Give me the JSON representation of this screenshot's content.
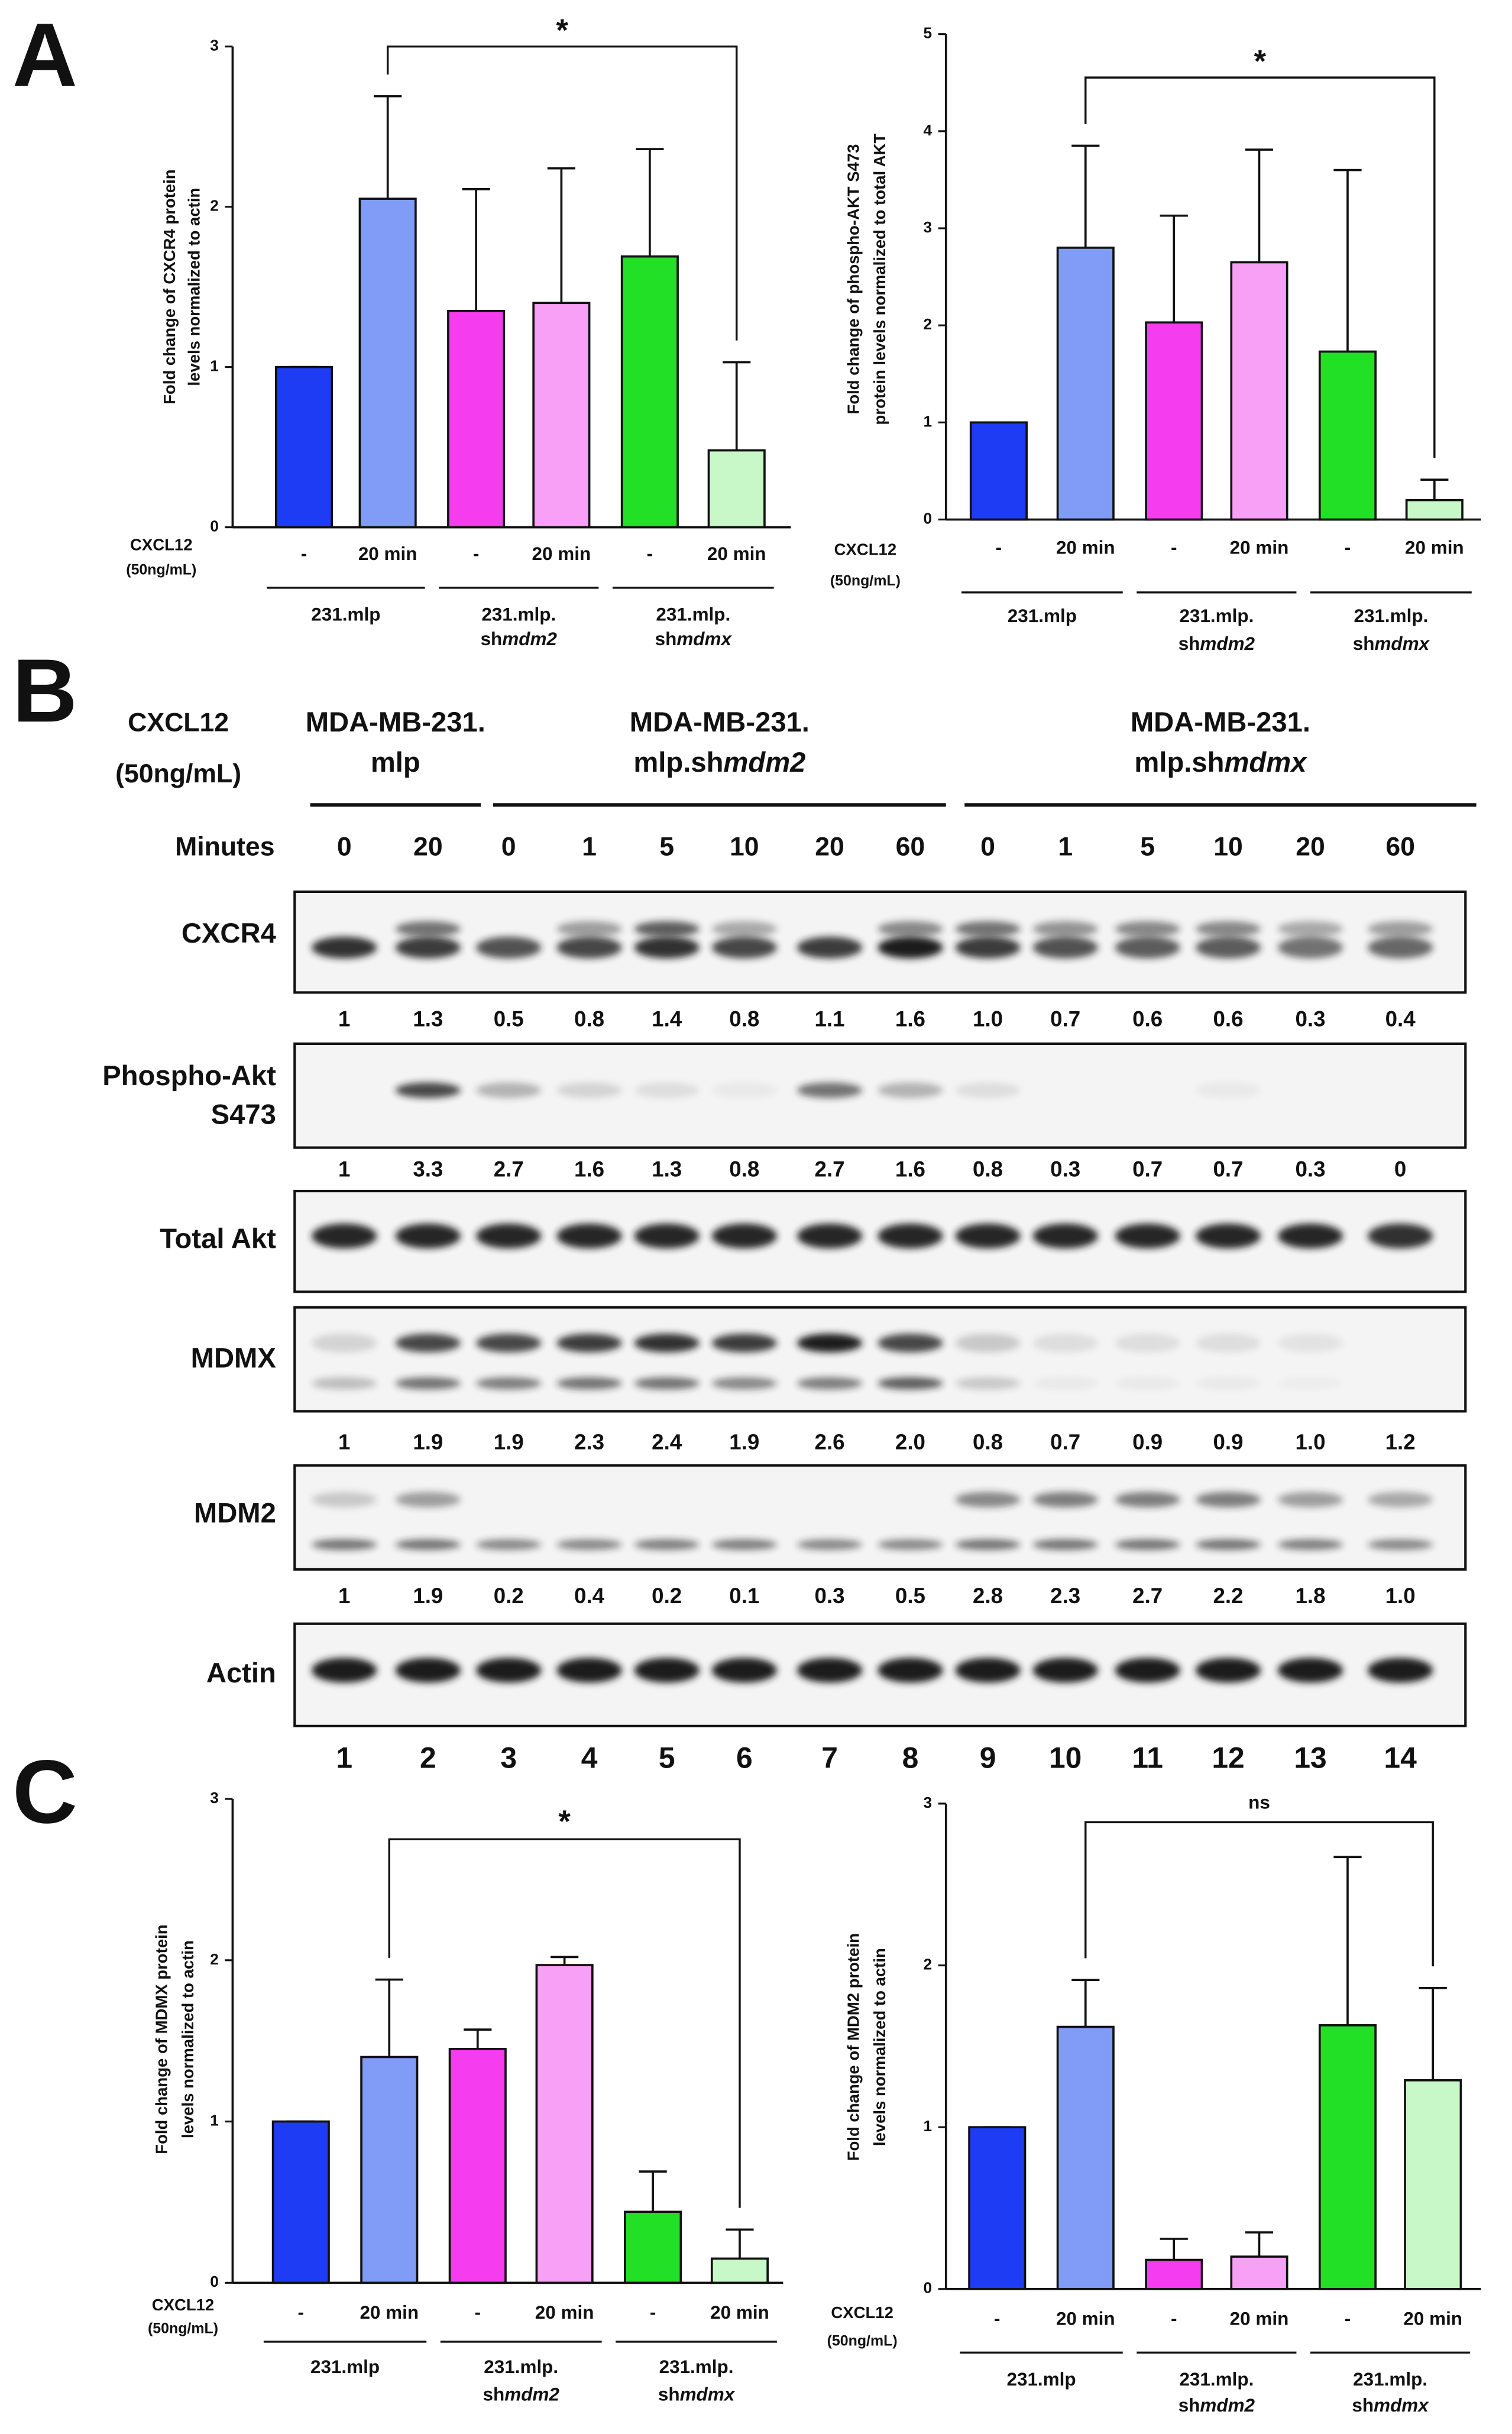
{
  "panel_labels": [
    "A",
    "B",
    "C"
  ],
  "chart_data": [
    {
      "type": "bar",
      "y_label": [
        "Fold change of CXCR4 protein",
        "levels normalized to actin"
      ],
      "categories": [
        "-",
        "20 min",
        "-",
        "20 min",
        "-",
        "20 min"
      ],
      "values": [
        1,
        2.05,
        1.35,
        1.4,
        1.69,
        0.48
      ],
      "errors": [
        0,
        0.64,
        0.76,
        0.84,
        0.67,
        0.55
      ],
      "colors": [
        "#1f3cf5",
        "#809cf7",
        "#f53cef",
        "#f8a0f6",
        "#22e026",
        "#c8f7c8"
      ],
      "ylim": [
        0,
        3
      ],
      "yticks": [
        0,
        1,
        2,
        3
      ],
      "treatment_label": [
        "CXCL12",
        "(50ng/mL)"
      ],
      "group_labels": [
        [
          "231.mlp"
        ],
        [
          "231.mlp.",
          "sh",
          "mdm2"
        ],
        [
          "231.mlp.",
          "sh",
          "mdmx"
        ]
      ],
      "significance": "*"
    },
    {
      "type": "bar",
      "y_label": [
        "Fold change of phospho-AKT S473",
        "protein levels normalized to total  AKT"
      ],
      "categories": [
        "-",
        "20 min",
        "-",
        "20 min",
        "-",
        "20 min"
      ],
      "values": [
        1,
        2.8,
        2.03,
        2.65,
        1.73,
        0.2
      ],
      "errors": [
        0,
        1.05,
        1.1,
        1.16,
        1.87,
        0.21
      ],
      "colors": [
        "#1f3cf5",
        "#809cf7",
        "#f53cef",
        "#f8a0f6",
        "#22e026",
        "#c8f7c8"
      ],
      "ylim": [
        0,
        5
      ],
      "yticks": [
        0,
        1,
        2,
        3,
        4,
        5
      ],
      "treatment_label": [
        "CXCL12",
        "(50ng/mL)"
      ],
      "group_labels": [
        [
          "231.mlp"
        ],
        [
          "231.mlp.",
          "sh",
          "mdm2"
        ],
        [
          "231.mlp.",
          "sh",
          "mdmx"
        ]
      ],
      "significance": "*"
    },
    {
      "type": "bar",
      "y_label": [
        "Fold change of MDMX protein",
        "levels normalized to actin"
      ],
      "categories": [
        "-",
        "20 min",
        "-",
        "20 min",
        "-",
        "20 min"
      ],
      "values": [
        1,
        1.4,
        1.45,
        1.97,
        0.44,
        0.15
      ],
      "errors": [
        0,
        0.48,
        0.12,
        0.05,
        0.25,
        0.18
      ],
      "colors": [
        "#1f3cf5",
        "#809cf7",
        "#f53cef",
        "#f8a0f6",
        "#22e026",
        "#c8f7c8"
      ],
      "ylim": [
        0,
        3
      ],
      "yticks": [
        0,
        1,
        2,
        3
      ],
      "treatment_label": [
        "CXCL12",
        "(50ng/mL)"
      ],
      "group_labels": [
        [
          "231.mlp"
        ],
        [
          "231.mlp.",
          "sh",
          "mdm2"
        ],
        [
          "231.mlp.",
          "sh",
          "mdmx"
        ]
      ],
      "significance": "*"
    },
    {
      "type": "bar",
      "y_label": [
        "Fold change of MDM2 protein",
        "levels normalized to actin"
      ],
      "categories": [
        "-",
        "20 min",
        "-",
        "20 min",
        "-",
        "20 min"
      ],
      "values": [
        1,
        1.62,
        0.18,
        0.2,
        1.63,
        1.29
      ],
      "errors": [
        0,
        0.29,
        0.13,
        0.15,
        1.04,
        0.57
      ],
      "colors": [
        "#1f3cf5",
        "#809cf7",
        "#f53cef",
        "#f8a0f6",
        "#22e026",
        "#c8f7c8"
      ],
      "ylim": [
        0,
        3
      ],
      "yticks": [
        0,
        1,
        2,
        3
      ],
      "treatment_label": [
        "CXCL12",
        "(50ng/mL)"
      ],
      "group_labels": [
        [
          "231.mlp"
        ],
        [
          "231.mlp.",
          "sh",
          "mdm2"
        ],
        [
          "231.mlp.",
          "sh",
          "mdmx"
        ]
      ],
      "significance": "ns"
    }
  ],
  "blot": {
    "treatment_label": [
      "CXCL12",
      "(50ng/mL)"
    ],
    "groups": [
      [
        "MDA-MB-231.",
        "mlp"
      ],
      [
        "MDA-MB-231.",
        "mlp.sh",
        "mdm2"
      ],
      [
        "MDA-MB-231.",
        "mlp.sh",
        "mdmx"
      ]
    ],
    "minutes_label": "Minutes",
    "minutes": [
      0,
      20,
      0,
      1,
      5,
      10,
      20,
      60,
      0,
      1,
      5,
      10,
      20,
      60
    ],
    "rows": [
      {
        "name": [
          "CXCR4"
        ],
        "quant": [
          "1",
          "1.3",
          "0.5",
          "0.8",
          "1.4",
          "0.8",
          "1.1",
          "1.6",
          "1.0",
          "0.7",
          "0.6",
          "0.6",
          "0.3",
          "0.4"
        ]
      },
      {
        "name": [
          "Phospho-Akt",
          "S473"
        ],
        "quant": [
          "1",
          "3.3",
          "2.7",
          "1.6",
          "1.3",
          "0.8",
          "2.7",
          "1.6",
          "0.8",
          "0.3",
          "0.7",
          "0.7",
          "0.3",
          "0"
        ]
      },
      {
        "name": [
          "Total Akt"
        ]
      },
      {
        "name": [
          "MDMX"
        ],
        "quant": [
          "1",
          "1.9",
          "1.9",
          "2.3",
          "2.4",
          "1.9",
          "2.6",
          "2.0",
          "0.8",
          "0.7",
          "0.9",
          "0.9",
          "1.0",
          "1.2"
        ]
      },
      {
        "name": [
          "MDM2"
        ],
        "quant": [
          "1",
          "1.9",
          "0.2",
          "0.4",
          "0.2",
          "0.1",
          "0.3",
          "0.5",
          "2.8",
          "2.3",
          "2.7",
          "2.2",
          "1.8",
          "1.0"
        ]
      },
      {
        "name": [
          "Actin"
        ]
      }
    ],
    "lanes": [
      1,
      2,
      3,
      4,
      5,
      6,
      7,
      8,
      9,
      10,
      11,
      12,
      13,
      14
    ]
  }
}
